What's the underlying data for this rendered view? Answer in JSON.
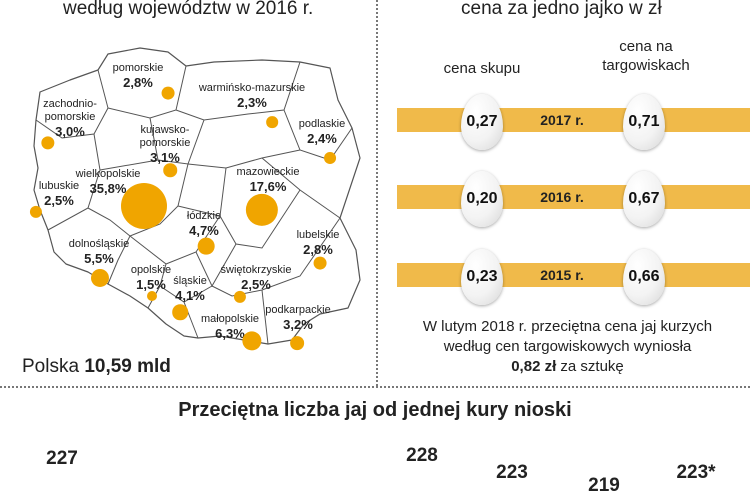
{
  "map_panel": {
    "header": "według województw w 2016 r.",
    "total_label": "Polska",
    "total_value": "10,59 mld"
  },
  "price_panel": {
    "header": "cena za jedno jajko w zł",
    "col_skup": "cena skupu",
    "col_targ_line1": "cena na",
    "col_targ_line2": "targowiskach",
    "rows": [
      {
        "year": "2017 r.",
        "skup": "0,27",
        "targ": "0,71"
      },
      {
        "year": "2016 r.",
        "skup": "0,20",
        "targ": "0,67"
      },
      {
        "year": "2015 r.",
        "skup": "0,23",
        "targ": "0,66"
      }
    ],
    "note_line1": "W lutym 2018 r. przeciętna cena jaj kurzych",
    "note_line2": "według cen targowiskowych wyniosła",
    "note_bold": "0,82 zł",
    "note_tail": " za sztukę"
  },
  "bottom": {
    "title": "Przeciętna liczba jaj od jednej kury nioski"
  },
  "colors": {
    "accent": "#f0a500",
    "band": "#f0ba4a",
    "map_fill": "#ffffff",
    "map_stroke": "#555555"
  },
  "chart_data": [
    {
      "type": "map-bubble",
      "title": "według województw w 2016 r.",
      "unit": "%",
      "regions": [
        {
          "name": "pomorskie",
          "value_label": "2,8%",
          "value": 2.8
        },
        {
          "name": "zachodnio-pomorskie",
          "line1": "zachodnio-",
          "line2": "pomorskie",
          "value_label": "3,0%",
          "value": 3.0
        },
        {
          "name": "warmińsko-mazurskie",
          "value_label": "2,3%",
          "value": 2.3
        },
        {
          "name": "podlaskie",
          "value_label": "2,4%",
          "value": 2.4
        },
        {
          "name": "kujawsko-pomorskie",
          "line1": "kujawsko-",
          "line2": "pomorskie",
          "value_label": "3,1%",
          "value": 3.1
        },
        {
          "name": "wielkopolskie",
          "value_label": "35,8%",
          "value": 35.8
        },
        {
          "name": "lubuskie",
          "value_label": "2,5%",
          "value": 2.5
        },
        {
          "name": "mazowieckie",
          "value_label": "17,6%",
          "value": 17.6
        },
        {
          "name": "łódzkie",
          "value_label": "4,7%",
          "value": 4.7
        },
        {
          "name": "dolnośląskie",
          "value_label": "5,5%",
          "value": 5.5
        },
        {
          "name": "lubelskie",
          "value_label": "2,8%",
          "value": 2.8
        },
        {
          "name": "opolskie",
          "value_label": "1,5%",
          "value": 1.5
        },
        {
          "name": "śląskie",
          "value_label": "4,1%",
          "value": 4.1
        },
        {
          "name": "świętokrzyskie",
          "value_label": "2,5%",
          "value": 2.5
        },
        {
          "name": "małopolskie",
          "value_label": "6,3%",
          "value": 6.3
        },
        {
          "name": "podkarpackie",
          "value_label": "3,2%",
          "value": 3.2
        }
      ]
    },
    {
      "type": "table",
      "title": "cena za jedno jajko w zł",
      "columns": [
        "cena skupu",
        "cena na targowiskach"
      ],
      "rows": [
        {
          "year": "2017 r.",
          "values": [
            0.27,
            0.71
          ]
        },
        {
          "year": "2016 r.",
          "values": [
            0.2,
            0.67
          ]
        },
        {
          "year": "2015 r.",
          "values": [
            0.23,
            0.66
          ]
        }
      ]
    },
    {
      "type": "bar",
      "title": "Przeciętna liczba jaj od jednej kury nioski",
      "value_labels": [
        "227",
        "228",
        "223",
        "219",
        "223*"
      ],
      "values": [
        227,
        228,
        223,
        219,
        223
      ]
    }
  ]
}
